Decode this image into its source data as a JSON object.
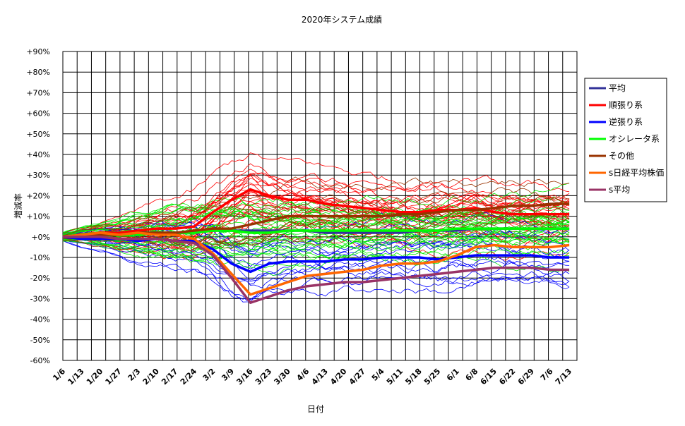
{
  "chart_data": {
    "type": "line",
    "title": "2020年システム成績",
    "xlabel": "日付",
    "ylabel": "増減率",
    "ylim": [
      -60,
      90
    ],
    "grid": true,
    "legend_position": "right",
    "y_ticks": [
      "+90%",
      "+80%",
      "+70%",
      "+60%",
      "+50%",
      "+40%",
      "+30%",
      "+20%",
      "+10%",
      "+0%",
      "-10%",
      "-20%",
      "-30%",
      "-40%",
      "-50%",
      "-60%"
    ],
    "categories": [
      "1/6",
      "1/13",
      "1/20",
      "1/27",
      "2/3",
      "2/10",
      "2/17",
      "2/24",
      "3/2",
      "3/9",
      "3/16",
      "3/23",
      "3/30",
      "4/6",
      "4/13",
      "4/20",
      "4/27",
      "5/4",
      "5/11",
      "5/18",
      "5/25",
      "6/1",
      "6/8",
      "6/15",
      "6/22",
      "6/29",
      "7/6",
      "7/13"
    ],
    "series": [
      {
        "name": "平均",
        "color": "#333399",
        "values": [
          0,
          1,
          1,
          1,
          2,
          2,
          2,
          2,
          3,
          3,
          3,
          3,
          3,
          3,
          2,
          2,
          2,
          2,
          2,
          3,
          3,
          3,
          4,
          4,
          4,
          4,
          4,
          4
        ]
      },
      {
        "name": "順張り系",
        "color": "#ff0000",
        "values": [
          0,
          1,
          2,
          2,
          3,
          4,
          4,
          5,
          12,
          18,
          23,
          20,
          18,
          18,
          16,
          15,
          14,
          13,
          12,
          12,
          13,
          13,
          14,
          12,
          11,
          11,
          11,
          11
        ]
      },
      {
        "name": "逆張り系",
        "color": "#0000ff",
        "values": [
          0,
          -1,
          -1,
          -1,
          -2,
          -1,
          -2,
          -2,
          -6,
          -13,
          -17,
          -13,
          -12,
          -12,
          -12,
          -11,
          -11,
          -10,
          -10,
          -10,
          -11,
          -10,
          -9,
          -9,
          -9,
          -9,
          -10,
          -10
        ]
      },
      {
        "name": "オシレータ系",
        "color": "#00ff00",
        "values": [
          0,
          1,
          1,
          1,
          1,
          2,
          2,
          2,
          3,
          3,
          2,
          2,
          3,
          3,
          3,
          3,
          3,
          3,
          3,
          3,
          3,
          4,
          4,
          4,
          4,
          4,
          4,
          4
        ]
      },
      {
        "name": "その他",
        "color": "#993300",
        "values": [
          0,
          1,
          1,
          1,
          2,
          2,
          2,
          3,
          4,
          4,
          6,
          8,
          10,
          10,
          10,
          10,
          10,
          10,
          11,
          11,
          12,
          13,
          13,
          14,
          15,
          15,
          16,
          16
        ]
      },
      {
        "name": "s日経平均株価",
        "color": "#ff6600",
        "values": [
          0,
          1,
          2,
          1,
          2,
          1,
          1,
          -1,
          -8,
          -18,
          -28,
          -25,
          -22,
          -19,
          -18,
          -17,
          -16,
          -14,
          -13,
          -13,
          -12,
          -9,
          -5,
          -4,
          -5,
          -5,
          -5,
          -4
        ]
      },
      {
        "name": "s平均",
        "color": "#993366",
        "values": [
          0,
          0,
          0,
          -1,
          -1,
          -1,
          -2,
          -3,
          -9,
          -20,
          -32,
          -29,
          -26,
          -24,
          -23,
          -22,
          -22,
          -21,
          -20,
          -19,
          -18,
          -17,
          -16,
          -15,
          -15,
          -15,
          -16,
          -16
        ]
      }
    ]
  }
}
